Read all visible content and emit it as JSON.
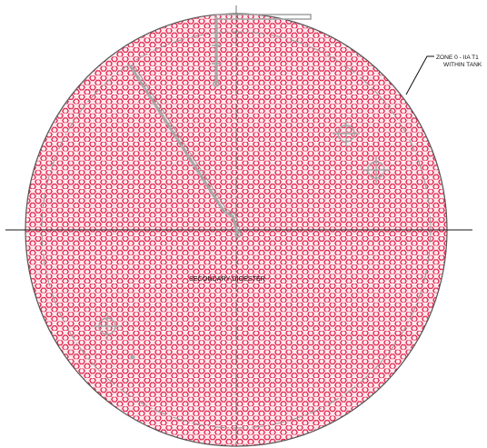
{
  "drawing": {
    "tank_label": "SECONDARY DIGESTER",
    "zone_callout": {
      "line1": "ZONE 0 - IIA T1",
      "line2": "WITHIN TANK"
    }
  },
  "colors": {
    "hatch": "#e0103c",
    "tank_fill": "#fde9ee",
    "outline": "#555555",
    "equipment": "#a7a7a7",
    "centerline": "#1a1a1a",
    "background": "#ffffff"
  },
  "legend_icons": [
    "zone-0-hatch-pattern",
    "manhole-icon",
    "nozzle-icon"
  ]
}
